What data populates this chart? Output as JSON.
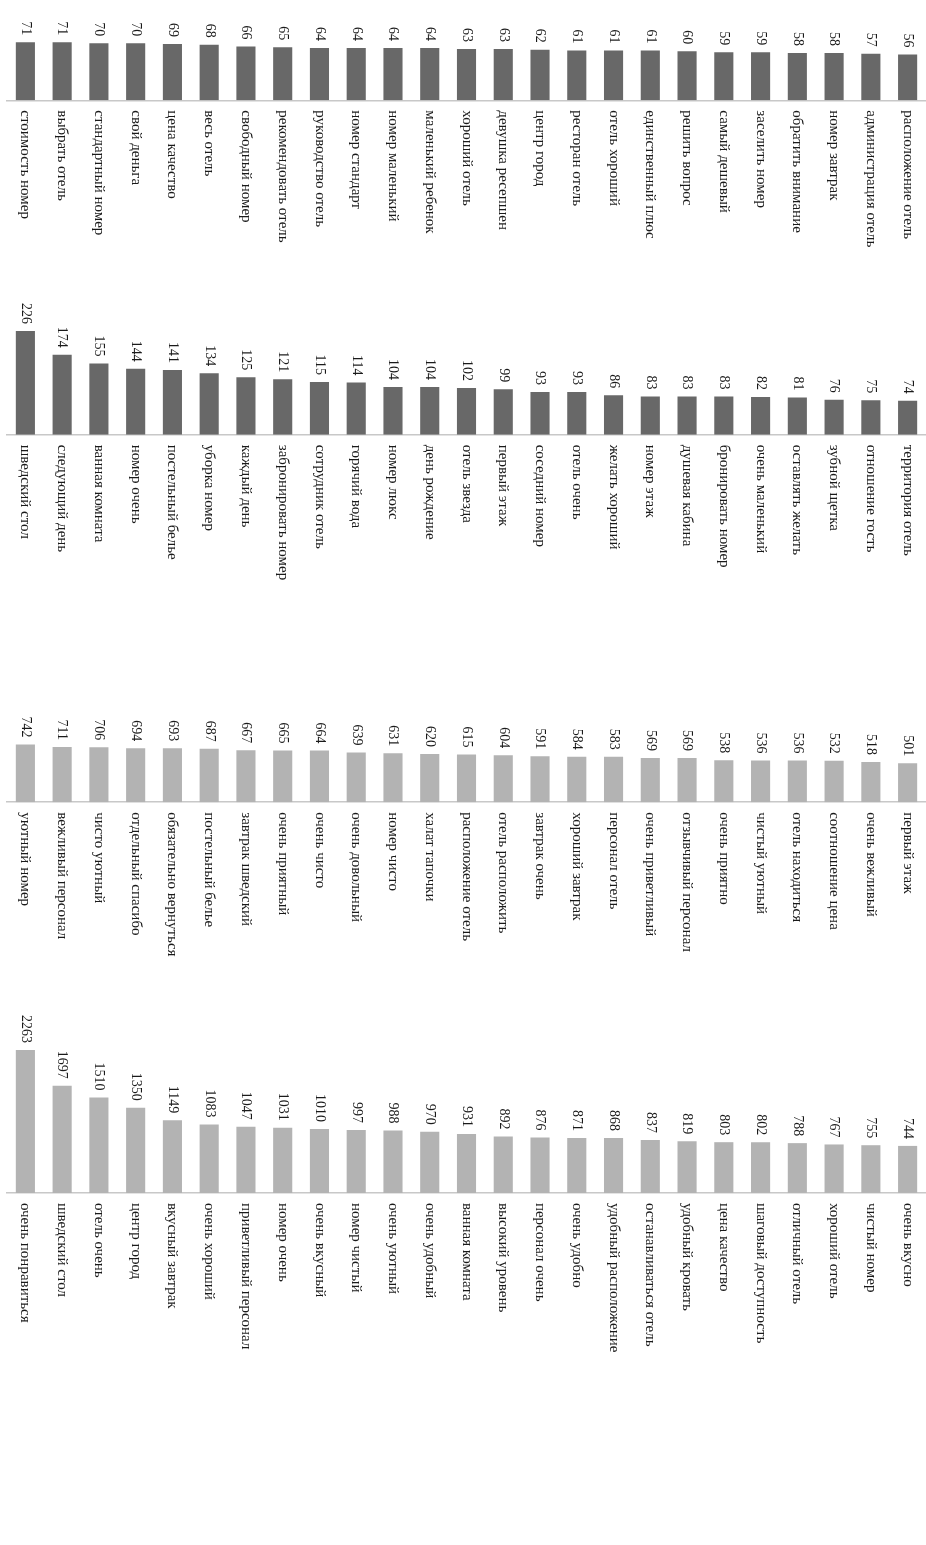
{
  "chart_data": [
    {
      "type": "bar",
      "categories": [
        "стоимость номер",
        "выбрать отель",
        "стандартный номер",
        "свой деньга",
        "цена качество",
        "весь отель",
        "свободный номер",
        "рекомендовать отель",
        "руководство отель",
        "номер стандарт",
        "номер маленький",
        "маленький ребенок",
        "хороший отель",
        "девушка ресепшен",
        "центр город",
        "ресторан отель",
        "отель хороший",
        "единственный плюс",
        "решить вопрос",
        "самый дешевый",
        "заселить номер",
        "обратить внимание",
        "номер завтрак",
        "администрация отель",
        "расположение отель"
      ],
      "values": [
        71,
        71,
        70,
        70,
        69,
        68,
        66,
        65,
        64,
        64,
        64,
        64,
        63,
        63,
        62,
        61,
        61,
        61,
        60,
        59,
        59,
        58,
        58,
        57,
        56
      ],
      "color": "#686868",
      "data_labels": true
    },
    {
      "type": "bar",
      "categories": [
        "шведский стол",
        "следующий день",
        "ванная комната",
        "номер очень",
        "постельный белье",
        "уборка номер",
        "каждый день",
        "забронировать номер",
        "сотрудник отель",
        "горячий вода",
        "номер люкс",
        "день рождение",
        "отель звезда",
        "первый этаж",
        "соседний номер",
        "отель очень",
        "желать хороший",
        "номер этаж",
        "душевая кабина",
        "бронировать номер",
        "очень маленький",
        "оставлять желать",
        "зубной щетка",
        "отношение гость",
        "территория отель"
      ],
      "values": [
        226,
        174,
        155,
        144,
        141,
        134,
        125,
        121,
        115,
        114,
        104,
        104,
        102,
        99,
        93,
        93,
        86,
        83,
        83,
        83,
        82,
        81,
        76,
        75,
        74
      ],
      "color": "#686868",
      "data_labels": true
    },
    {
      "type": "bar",
      "categories": [
        "уютный номер",
        "вежливый персонал",
        "чисто уютный",
        "отдельный спасибо",
        "обязательно вернуться",
        "постельный белье",
        "завтрак шведский",
        "очень приятный",
        "очень чисто",
        "очень довольный",
        "номер чисто",
        "халат тапочки",
        "расположение отель",
        "отель расположить",
        "завтрак очень",
        "хороший завтрак",
        "персонал отель",
        "очень приветливый",
        "отзывчивый персонал",
        "очень приятно",
        "чистый уютный",
        "отель находиться",
        "соотношение цена",
        "очень вежливый",
        "первый этаж"
      ],
      "values": [
        742,
        711,
        706,
        694,
        693,
        687,
        667,
        665,
        664,
        639,
        631,
        620,
        615,
        604,
        591,
        584,
        583,
        569,
        569,
        538,
        536,
        536,
        532,
        518,
        501
      ],
      "color": "#b3b3b3",
      "data_labels": true
    },
    {
      "type": "bar",
      "categories": [
        "очень понравиться",
        "шведский стол",
        "отель очень",
        "центр город",
        "вкусный завтрак",
        "очень хороший",
        "приветливый персонал",
        "номер очень",
        "очень вкусный",
        "номер чистый",
        "очень уютный",
        "очень удобный",
        "ванная комната",
        "высокий уровень",
        "персонал очень",
        "очень удобно",
        "удобный расположение",
        "останавливаться отель",
        "удобный кровать",
        "цена качество",
        "шаговый доступность",
        "отличный отель",
        "хороший отель",
        "чистый номер",
        "очень вкусно"
      ],
      "values": [
        2263,
        1697,
        1510,
        1350,
        1149,
        1083,
        1047,
        1031,
        1010,
        997,
        988,
        970,
        931,
        892,
        876,
        871,
        868,
        837,
        819,
        803,
        802,
        788,
        767,
        755,
        744
      ],
      "color": "#b3b3b3",
      "data_labels": true
    }
  ]
}
